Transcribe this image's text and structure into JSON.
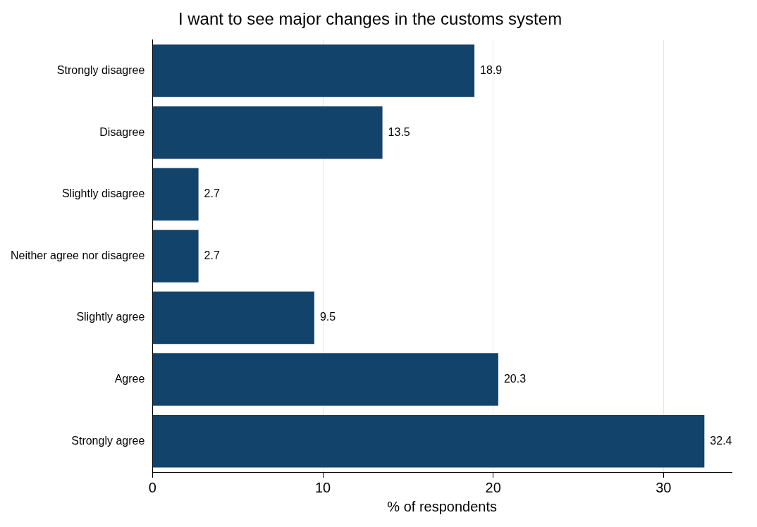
{
  "chart_data": {
    "type": "bar",
    "orientation": "horizontal",
    "title": "I want to see major changes in the customs system",
    "xlabel": "% of respondents",
    "categories": [
      "Strongly disagree",
      "Disagree",
      "Slightly disagree",
      "Neither agree nor disagree",
      "Slightly agree",
      "Agree",
      "Strongly agree"
    ],
    "values": [
      18.9,
      13.5,
      2.7,
      2.7,
      9.5,
      20.3,
      32.4
    ],
    "color": "#12436b",
    "xlim": [
      0,
      34
    ],
    "xticks": [
      0,
      10,
      20,
      30
    ],
    "grid": "x",
    "legend": false,
    "data_labels": true
  }
}
